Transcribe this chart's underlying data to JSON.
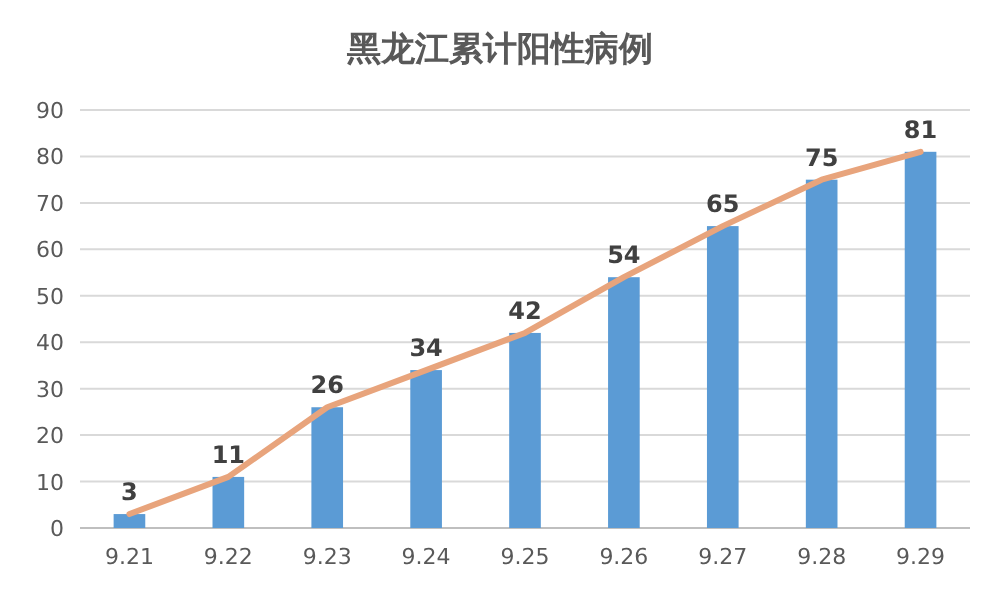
{
  "chart_data": {
    "type": "bar",
    "title": "黑龙江累计阳性病例",
    "categories": [
      "9.21",
      "9.22",
      "9.23",
      "9.24",
      "9.25",
      "9.26",
      "9.27",
      "9.28",
      "9.29"
    ],
    "series": [
      {
        "color": "#5b9bd5",
        "values": [
          3,
          11,
          26,
          34,
          42,
          54,
          65,
          75,
          81
        ],
        "value_labels": [
          "3",
          "11",
          "26",
          "34",
          "42",
          "54",
          "65",
          "75",
          "81"
        ]
      },
      {
        "type": "line",
        "color": "#e8a47c",
        "values": [
          3,
          11,
          26,
          34,
          42,
          54,
          65,
          75,
          81
        ]
      }
    ],
    "ylim": [
      0,
      90
    ],
    "yticks": [
      0,
      10,
      20,
      30,
      40,
      50,
      60,
      70,
      80,
      90
    ],
    "grid": "y",
    "marker": "none",
    "line_style": "solid"
  }
}
